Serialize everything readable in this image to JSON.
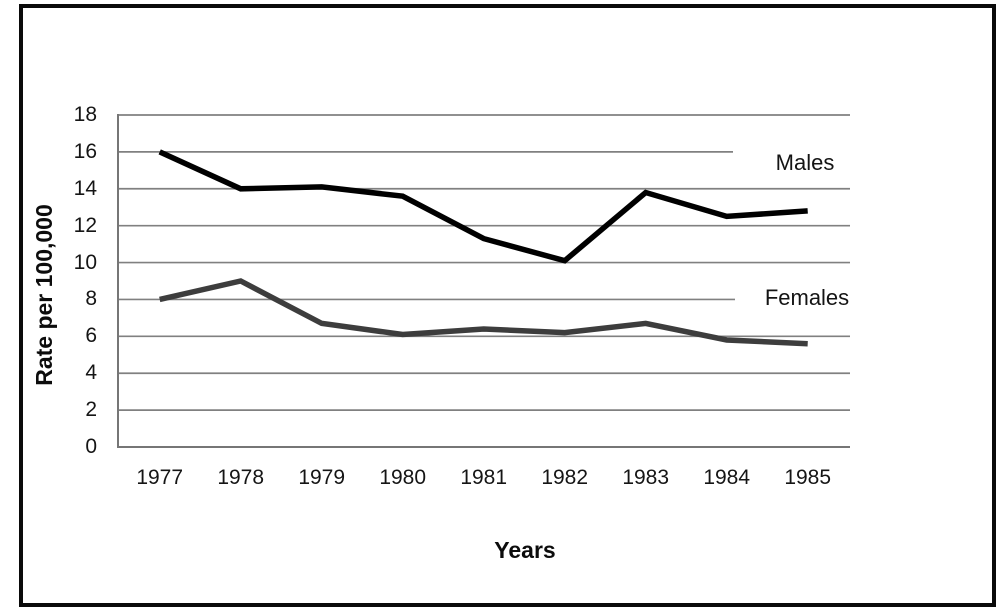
{
  "page": {
    "background": "#ffffff",
    "frame_border_color": "#0a0a0a"
  },
  "chart_data": {
    "type": "line",
    "title": "",
    "categories": [
      "1977",
      "1978",
      "1979",
      "1980",
      "1981",
      "1982",
      "1983",
      "1984",
      "1985"
    ],
    "series": [
      {
        "name": "Males",
        "color": "#000000",
        "values": [
          16.0,
          14.0,
          14.1,
          13.6,
          11.3,
          10.1,
          13.8,
          12.5,
          12.8
        ]
      },
      {
        "name": "Females",
        "color": "#3d3d3d",
        "values": [
          8.0,
          9.0,
          6.7,
          6.1,
          6.4,
          6.2,
          6.7,
          5.8,
          5.6
        ]
      }
    ],
    "xlabel": "Years",
    "ylabel": "Rate per 100,000",
    "ylim": [
      0,
      18
    ],
    "ytick_step": 2,
    "yticks": [
      0,
      2,
      4,
      6,
      8,
      10,
      12,
      14,
      16,
      18
    ],
    "grid": true,
    "gridline_color": "#808080",
    "axis_line_color": "#767676",
    "legend_position": "labels-right-inside-plot"
  }
}
